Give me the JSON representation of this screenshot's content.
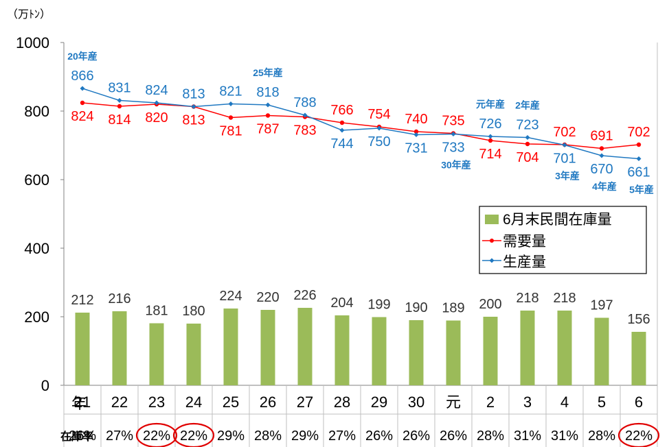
{
  "unit_label": "（万ﾄﾝ）",
  "chart_data": {
    "type": "bar+line",
    "ylim": [
      0,
      1000
    ],
    "yticks": [
      0,
      200,
      400,
      600,
      800,
      1000
    ],
    "row_header_year": "年",
    "row_header_rate": "在庫率",
    "categories": [
      "21",
      "22",
      "23",
      "24",
      "25",
      "26",
      "27",
      "28",
      "29",
      "30",
      "元",
      "2",
      "3",
      "4",
      "5",
      "6"
    ],
    "inventory_rates": [
      "26%",
      "27%",
      "22%",
      "22%",
      "29%",
      "28%",
      "29%",
      "27%",
      "26%",
      "26%",
      "26%",
      "28%",
      "31%",
      "31%",
      "28%",
      "22%"
    ],
    "circled_rate_indices": [
      2,
      3,
      15
    ],
    "series": [
      {
        "name": "6月末民間在庫量",
        "kind": "bar",
        "color": "#9bbb59",
        "values": [
          212,
          216,
          181,
          180,
          224,
          220,
          226,
          204,
          199,
          190,
          189,
          200,
          218,
          218,
          197,
          156
        ]
      },
      {
        "name": "需要量",
        "kind": "line",
        "color": "#ff0000",
        "values": [
          824,
          814,
          820,
          813,
          781,
          787,
          783,
          766,
          754,
          740,
          735,
          714,
          704,
          702,
          691,
          702
        ]
      },
      {
        "name": "生産量",
        "kind": "line",
        "color": "#1f78c1",
        "values": [
          866,
          831,
          824,
          813,
          821,
          818,
          788,
          744,
          750,
          731,
          733,
          726,
          723,
          701,
          670,
          661
        ]
      }
    ],
    "annotations": [
      {
        "text": "20年産",
        "index": 0
      },
      {
        "text": "25年産",
        "index": 5
      },
      {
        "text": "30年産",
        "index": 10
      },
      {
        "text": "元年産",
        "index": 11
      },
      {
        "text": "2年産",
        "index": 12
      },
      {
        "text": "3年産",
        "index": 13
      },
      {
        "text": "4年産",
        "index": 14
      },
      {
        "text": "5年産",
        "index": 15
      }
    ],
    "legend_position": "right",
    "grid": false
  }
}
